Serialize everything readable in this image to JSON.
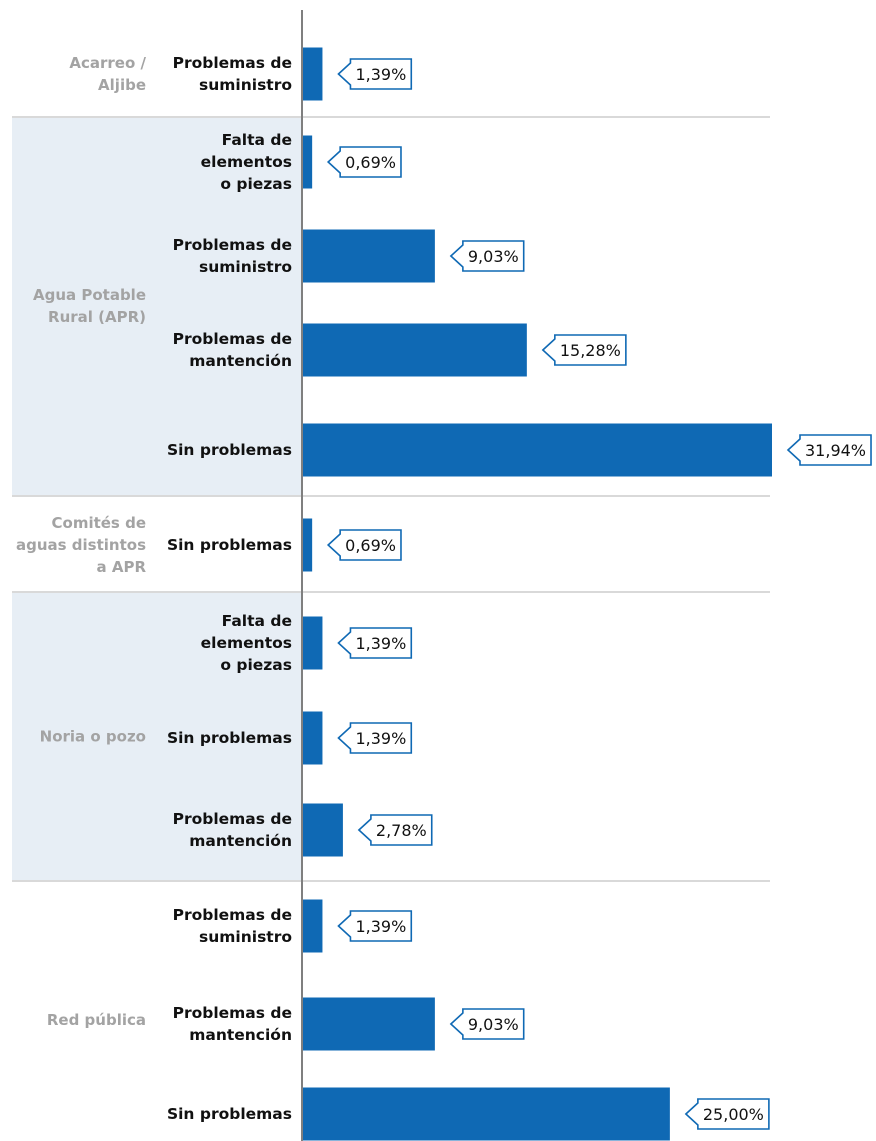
{
  "chart_data": {
    "type": "bar",
    "orientation": "horizontal",
    "grouped": true,
    "title": "",
    "xlabel": "",
    "ylabel": "",
    "xlim": [
      0,
      31.94
    ],
    "grid": false,
    "legend": "none",
    "colors": {
      "bar": "#0f69b4",
      "band": "#e7eef5",
      "separator": "#d9d9d9",
      "axis": "#7f7f7f",
      "group_text": "#a3a3a3",
      "category_text": "#111111",
      "callout_border": "#0f69b4"
    },
    "groups": [
      {
        "name": "Acarreo / Aljibe",
        "name_lines": [
          "Acarreo /",
          "Aljibe"
        ],
        "banded": false,
        "bars": [
          {
            "category": "Problemas de suministro",
            "lines": [
              "Problemas de",
              "suministro"
            ],
            "value": 1.39,
            "label": "1,39%"
          }
        ]
      },
      {
        "name": "Agua Potable Rural (APR)",
        "name_lines": [
          "Agua Potable",
          "Rural (APR)"
        ],
        "banded": true,
        "bars": [
          {
            "category": "Falta de elementos o piezas",
            "lines": [
              "Falta de",
              "elementos",
              "o piezas"
            ],
            "value": 0.69,
            "label": "0,69%"
          },
          {
            "category": "Problemas de suministro",
            "lines": [
              "Problemas de",
              "suministro"
            ],
            "value": 9.03,
            "label": "9,03%"
          },
          {
            "category": "Problemas de mantención",
            "lines": [
              "Problemas de",
              "mantención"
            ],
            "value": 15.28,
            "label": "15,28%"
          },
          {
            "category": "Sin problemas",
            "lines": [
              "Sin problemas"
            ],
            "value": 31.94,
            "label": "31,94%"
          }
        ]
      },
      {
        "name": "Comités de aguas distintos a APR",
        "name_lines": [
          "Comités de",
          "aguas distintos",
          "a APR"
        ],
        "banded": false,
        "bars": [
          {
            "category": "Sin problemas",
            "lines": [
              "Sin problemas"
            ],
            "value": 0.69,
            "label": "0,69%"
          }
        ]
      },
      {
        "name": "Noria o pozo",
        "name_lines": [
          "Noria o pozo"
        ],
        "banded": true,
        "bars": [
          {
            "category": "Falta de elementos o piezas",
            "lines": [
              "Falta de",
              "elementos",
              "o piezas"
            ],
            "value": 1.39,
            "label": "1,39%"
          },
          {
            "category": "Sin problemas",
            "lines": [
              "Sin problemas"
            ],
            "value": 1.39,
            "label": "1,39%"
          },
          {
            "category": "Problemas de mantención",
            "lines": [
              "Problemas de",
              "mantención"
            ],
            "value": 2.78,
            "label": "2,78%"
          }
        ]
      },
      {
        "name": "Red pública",
        "name_lines": [
          "Red pública"
        ],
        "banded": false,
        "bars": [
          {
            "category": "Problemas de suministro",
            "lines": [
              "Problemas de",
              "suministro"
            ],
            "value": 1.39,
            "label": "1,39%"
          },
          {
            "category": "Problemas de mantención",
            "lines": [
              "Problemas de",
              "mantención"
            ],
            "value": 9.03,
            "label": "9,03%"
          },
          {
            "category": "Sin problemas",
            "lines": [
              "Sin problemas"
            ],
            "value": 25.0,
            "label": "25,00%"
          }
        ]
      }
    ]
  }
}
